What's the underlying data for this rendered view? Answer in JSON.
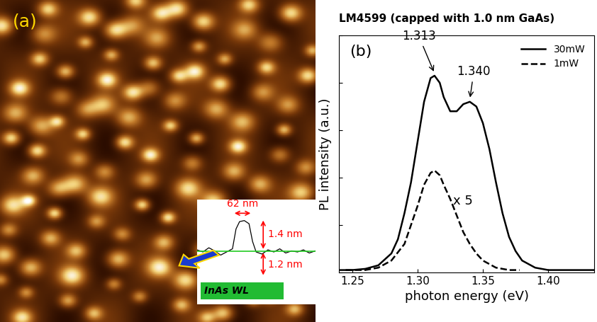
{
  "chart_data": [
    {
      "type": "image",
      "label": "(a)",
      "annotations": [
        "62 nm",
        "1.4 nm",
        "1.2 nm",
        "InAs WL"
      ]
    },
    {
      "type": "line",
      "title": "LM4599 (capped with 1.0 nm GaAs)",
      "label": "(b)",
      "x_label": "photon energy (eV)",
      "y_label": "PL intensity (a.u.)",
      "xlim": [
        1.24,
        1.435
      ],
      "xticks": [
        1.25,
        {
          "value": 1.3,
          "label": "1.30"
        },
        1.35,
        {
          "value": 1.4,
          "label": "1.40"
        }
      ],
      "ylim": [
        0,
        1.0
      ],
      "yticks": [
        0,
        0.2,
        0.4,
        0.6,
        0.8,
        1.0
      ],
      "tick_labels": "x",
      "legend": "upper right",
      "series": [
        {
          "name": "30mW",
          "color": "#000000",
          "line_style": "solid",
          "x": [
            1.24,
            1.25,
            1.26,
            1.27,
            1.28,
            1.285,
            1.29,
            1.295,
            1.3,
            1.305,
            1.31,
            1.313,
            1.317,
            1.32,
            1.325,
            1.33,
            1.335,
            1.34,
            1.345,
            1.35,
            1.355,
            1.36,
            1.365,
            1.37,
            1.375,
            1.38,
            1.39,
            1.4,
            1.42,
            1.435
          ],
          "values": [
            0.01,
            0.01,
            0.015,
            0.03,
            0.08,
            0.14,
            0.25,
            0.38,
            0.55,
            0.72,
            0.82,
            0.83,
            0.8,
            0.74,
            0.68,
            0.68,
            0.71,
            0.72,
            0.7,
            0.63,
            0.52,
            0.38,
            0.25,
            0.15,
            0.09,
            0.05,
            0.02,
            0.01,
            0.01,
            0.01
          ]
        },
        {
          "name": "1mW",
          "color": "#000000",
          "line_style": "dashed",
          "x": [
            1.245,
            1.26,
            1.27,
            1.28,
            1.29,
            1.295,
            1.3,
            1.305,
            1.31,
            1.313,
            1.317,
            1.32,
            1.325,
            1.33,
            1.335,
            1.34,
            1.345,
            1.35,
            1.36,
            1.37,
            1.378
          ],
          "values": [
            0.01,
            0.01,
            0.02,
            0.05,
            0.12,
            0.2,
            0.28,
            0.37,
            0.42,
            0.43,
            0.41,
            0.37,
            0.31,
            0.24,
            0.17,
            0.12,
            0.08,
            0.05,
            0.02,
            0.01,
            0.01
          ]
        }
      ],
      "peak_labels": [
        {
          "value": 1.313,
          "label": "1.313"
        },
        {
          "value": 1.34,
          "label": "1.340"
        }
      ],
      "annotations": [
        "x 5"
      ]
    }
  ]
}
